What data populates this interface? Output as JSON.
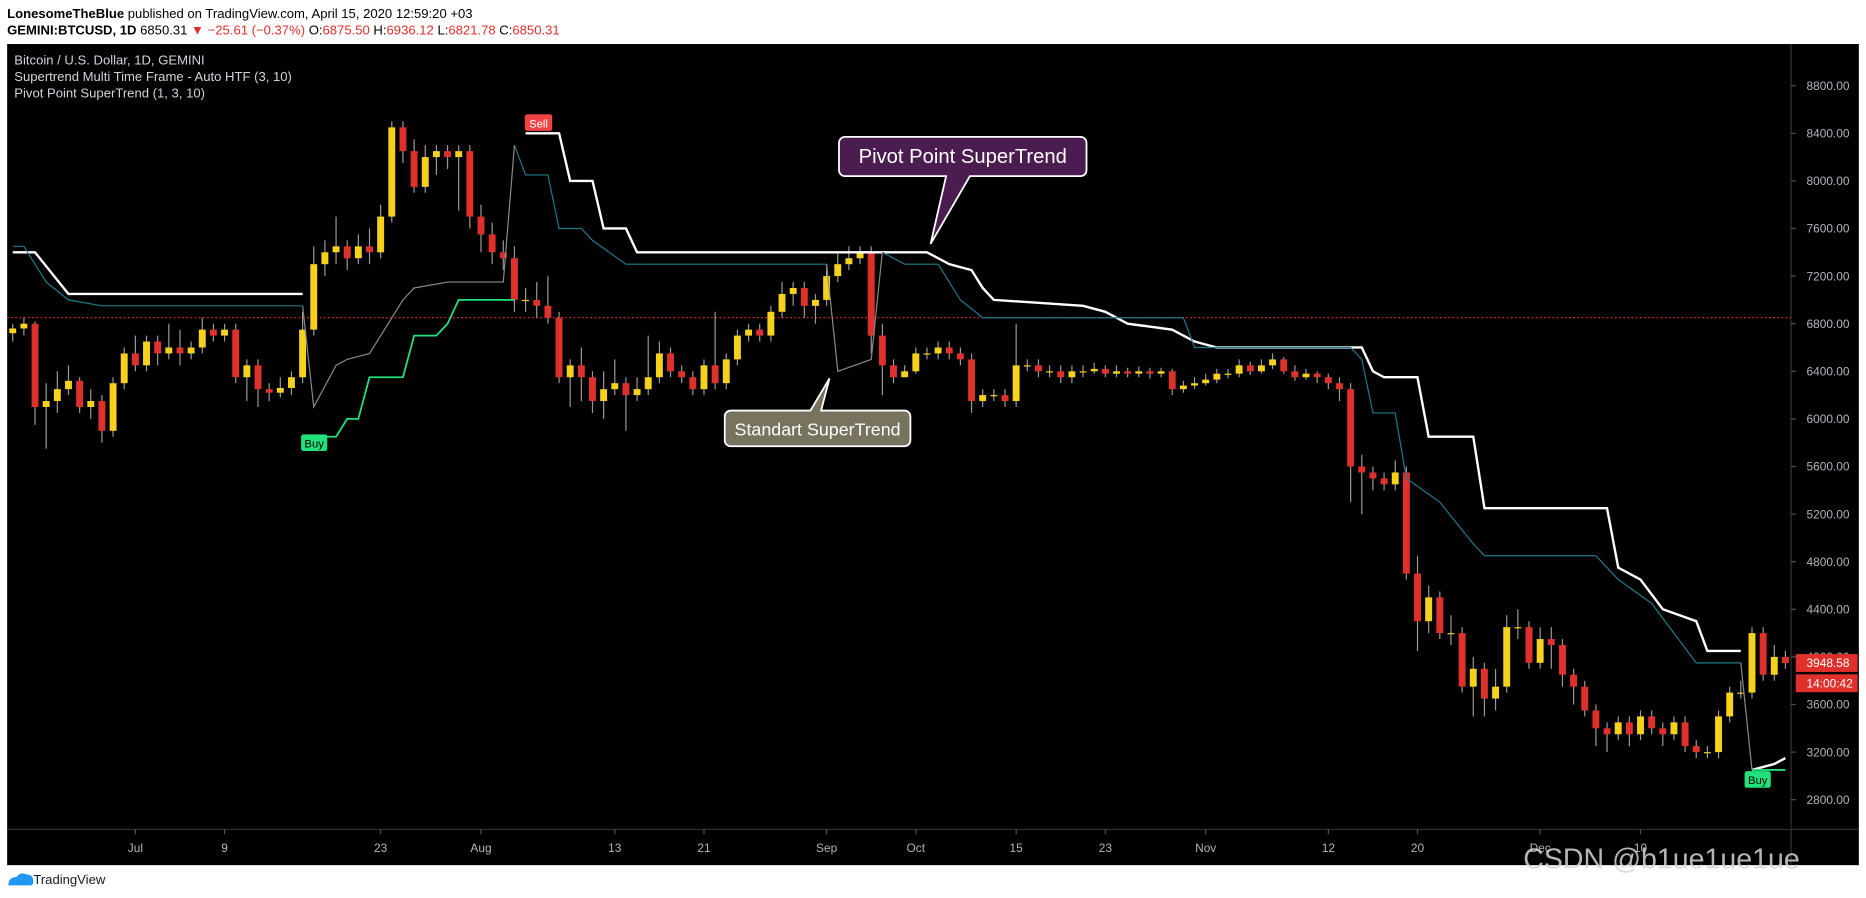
{
  "header": {
    "author": "LonesomeTheBlue",
    "published": "published on TradingView.com, April 15, 2020 12:59:20 +03",
    "symbol": "GEMINI:BTCUSD, 1D",
    "last": "6850.31",
    "change": "▼ −25.61 (−0.37%)",
    "ohlc": [
      {
        "key": "O:",
        "value": "6875.50"
      },
      {
        "key": "H:",
        "value": "6936.12"
      },
      {
        "key": "L:",
        "value": "6821.78"
      },
      {
        "key": "C:",
        "value": "6850.31"
      }
    ]
  },
  "chart_data": {
    "type": "candlestick",
    "title": "Bitcoin / U.S. Dollar, 1D, GEMINI",
    "indicators": [
      "Supertrend Multi Time Frame - Auto HTF (3, 10)",
      "Pivot Point SuperTrend (1, 3, 10)"
    ],
    "up_color": "#f7d21c",
    "down_color": "#e0302c",
    "wick_color": "#9a9a9a",
    "open": [
      6720,
      6760,
      6800,
      6100,
      6150,
      6250,
      6320,
      6100,
      6150,
      5900,
      6300,
      6550,
      6450,
      6650,
      6550,
      6600,
      6550,
      6600,
      6750,
      6700,
      6750,
      6350,
      6450,
      6250,
      6220,
      6260,
      6350,
      6750,
      7300,
      7400,
      7450,
      7350,
      7450,
      7400,
      7700,
      8450,
      8250,
      7950,
      8200,
      8250,
      8200,
      8250,
      7700,
      7550,
      7400,
      7350,
      7000,
      7000,
      6950,
      6850,
      6350,
      6450,
      6350,
      6150,
      6250,
      6300,
      6200,
      6250,
      6350,
      6550,
      6400,
      6350,
      6250,
      6450,
      6300,
      6500,
      6700,
      6750,
      6700,
      6900,
      7050,
      7100,
      6950,
      7000,
      7200,
      7300,
      7350,
      7400,
      6700,
      6450,
      6350,
      6400,
      6550,
      6550,
      6600,
      6550,
      6500,
      6150,
      6200,
      6200,
      6150,
      6450,
      6450,
      6400,
      6400,
      6350,
      6400,
      6400,
      6420,
      6380,
      6400,
      6380,
      6400,
      6380,
      6400,
      6250,
      6280,
      6300,
      6330,
      6380,
      6380,
      6450,
      6400,
      6450,
      6500,
      6400,
      6350,
      6380,
      6350,
      6300,
      6250,
      5600,
      5550,
      5500,
      5450,
      5550,
      4700,
      4300,
      4500,
      4200,
      4200,
      3750,
      3900,
      3650,
      3750,
      4250,
      4250,
      3950,
      4150,
      4100,
      3850,
      3750,
      3550,
      3400,
      3350,
      3450,
      3350,
      3500,
      3400,
      3350,
      3450,
      3250,
      3200,
      3200,
      3500,
      3700,
      3700,
      4200,
      3850,
      4000
    ],
    "high": [
      6800,
      6850,
      6820,
      6300,
      6400,
      6450,
      6350,
      6250,
      6200,
      6350,
      6600,
      6700,
      6700,
      6700,
      6800,
      6750,
      6650,
      6850,
      6800,
      6800,
      6800,
      6500,
      6500,
      6300,
      6350,
      6400,
      6900,
      7450,
      7500,
      7700,
      7500,
      7550,
      7600,
      7800,
      8500,
      8500,
      8350,
      8300,
      8300,
      8300,
      8300,
      8300,
      7800,
      7650,
      7500,
      7450,
      7100,
      7150,
      7200,
      6900,
      6500,
      6600,
      6400,
      6400,
      6500,
      6350,
      6350,
      6700,
      6650,
      6600,
      6450,
      6400,
      6500,
      6900,
      6550,
      6750,
      6800,
      6800,
      6950,
      7150,
      7150,
      7150,
      7050,
      7300,
      7400,
      7450,
      7450,
      7450,
      6800,
      6500,
      6450,
      6600,
      6600,
      6650,
      6650,
      6600,
      6550,
      6250,
      6250,
      6250,
      6800,
      6500,
      6500,
      6450,
      6450,
      6450,
      6450,
      6470,
      6450,
      6450,
      6430,
      6440,
      6430,
      6430,
      6420,
      6320,
      6350,
      6380,
      6420,
      6420,
      6500,
      6480,
      6500,
      6550,
      6520,
      6450,
      6420,
      6400,
      6380,
      6350,
      6300,
      5700,
      5600,
      5550,
      5650,
      5600,
      4850,
      4600,
      4550,
      4350,
      4250,
      4000,
      3950,
      3900,
      4350,
      4400,
      4300,
      4250,
      4250,
      4150,
      3900,
      3800,
      3600,
      3450,
      3500,
      3500,
      3550,
      3550,
      3450,
      3500,
      3500,
      3300,
      3250,
      3550,
      3750,
      3800,
      4250,
      4250,
      4100,
      4050
    ],
    "low": [
      6650,
      6700,
      5950,
      5750,
      6050,
      6200,
      6050,
      6000,
      5800,
      5850,
      6250,
      6400,
      6400,
      6450,
      6500,
      6450,
      6500,
      6550,
      6650,
      6650,
      6300,
      6150,
      6100,
      6150,
      6180,
      6200,
      6300,
      6700,
      7200,
      7300,
      7250,
      7300,
      7300,
      7350,
      7650,
      8150,
      7900,
      7900,
      8050,
      8100,
      7750,
      7600,
      7400,
      7300,
      7250,
      6900,
      6900,
      6850,
      6800,
      6300,
      6100,
      6150,
      6050,
      6000,
      6200,
      5900,
      6150,
      6200,
      6300,
      6350,
      6300,
      6200,
      6200,
      6250,
      6250,
      6450,
      6650,
      6650,
      6650,
      6850,
      6950,
      6850,
      6800,
      6950,
      7150,
      7250,
      7300,
      6550,
      6200,
      6300,
      6350,
      6380,
      6500,
      6500,
      6500,
      6450,
      6050,
      6100,
      6150,
      6100,
      6100,
      6400,
      6350,
      6350,
      6300,
      6300,
      6350,
      6380,
      6350,
      6350,
      6350,
      6350,
      6340,
      6350,
      6200,
      6220,
      6250,
      6280,
      6300,
      6340,
      6350,
      6370,
      6380,
      6420,
      6380,
      6320,
      6330,
      6300,
      6250,
      6150,
      5300,
      5200,
      5400,
      5400,
      5400,
      4650,
      4050,
      4200,
      4150,
      4100,
      3700,
      3500,
      3500,
      3550,
      3700,
      4150,
      3900,
      3900,
      3900,
      3750,
      3600,
      3500,
      3250,
      3200,
      3300,
      3250,
      3300,
      3350,
      3250,
      3300,
      3200,
      3150,
      3150,
      3150,
      3450,
      3650,
      3650,
      3800,
      3800,
      3900
    ],
    "close": [
      6760,
      6800,
      6100,
      6150,
      6250,
      6320,
      6100,
      6150,
      5900,
      6300,
      6550,
      6450,
      6650,
      6550,
      6600,
      6550,
      6600,
      6750,
      6700,
      6750,
      6350,
      6450,
      6250,
      6220,
      6260,
      6350,
      6750,
      7300,
      7400,
      7450,
      7350,
      7450,
      7400,
      7700,
      8450,
      8250,
      7950,
      8200,
      8250,
      8200,
      8250,
      7700,
      7550,
      7400,
      7350,
      7000,
      7000,
      6950,
      6850,
      6350,
      6450,
      6350,
      6150,
      6250,
      6300,
      6200,
      6250,
      6350,
      6550,
      6400,
      6350,
      6250,
      6450,
      6300,
      6500,
      6700,
      6750,
      6700,
      6900,
      7050,
      7100,
      6950,
      7000,
      7200,
      7300,
      7350,
      7400,
      6700,
      6450,
      6350,
      6400,
      6550,
      6550,
      6600,
      6550,
      6500,
      6150,
      6200,
      6200,
      6150,
      6450,
      6450,
      6400,
      6400,
      6350,
      6400,
      6400,
      6420,
      6380,
      6400,
      6380,
      6400,
      6380,
      6400,
      6250,
      6280,
      6300,
      6330,
      6380,
      6380,
      6450,
      6400,
      6450,
      6500,
      6400,
      6350,
      6380,
      6350,
      6300,
      6250,
      5600,
      5550,
      5500,
      5450,
      5550,
      4700,
      4300,
      4500,
      4200,
      4200,
      3750,
      3900,
      3650,
      3750,
      4250,
      4250,
      3950,
      4150,
      4100,
      3850,
      3750,
      3550,
      3400,
      3350,
      3450,
      3350,
      3500,
      3400,
      3350,
      3450,
      3250,
      3200,
      3200,
      3500,
      3700,
      3700,
      4200,
      3850,
      4000,
      3948.58
    ],
    "series": [
      {
        "color": "#ffffff",
        "width": 2,
        "x": [
          0,
          2,
          5,
          26,
          null,
          46,
          49,
          50,
          52,
          53,
          55,
          56,
          82,
          84,
          86,
          87,
          88,
          96,
          98,
          100,
          104,
          106,
          108,
          121,
          122,
          123,
          126,
          127,
          131,
          132,
          143,
          144,
          146,
          148,
          151,
          152,
          155,
          null,
          156,
          158,
          159
        ],
        "values": [
          7400,
          7400,
          7050,
          7050,
          null,
          8400,
          8400,
          8000,
          8000,
          7600,
          7600,
          7400,
          7400,
          7300,
          7250,
          7100,
          7000,
          6950,
          6900,
          6800,
          6750,
          6650,
          6600,
          6600,
          6400,
          6350,
          6350,
          5850,
          5850,
          5250,
          5250,
          4750,
          4650,
          4400,
          4300,
          4050,
          4050,
          null,
          3050,
          3100,
          3150
        ]
      },
      {
        "color": "#1f7a8c",
        "width": 1,
        "x": [
          0,
          1,
          3,
          5,
          8,
          26,
          null,
          45,
          46,
          48,
          49,
          51,
          52,
          55,
          73,
          null,
          78,
          80,
          83,
          85,
          87,
          105,
          106,
          120,
          121,
          122,
          124,
          125,
          128,
          131,
          132,
          142,
          144,
          147,
          149,
          151,
          155
        ],
        "values": [
          7450,
          7450,
          7150,
          7000,
          6950,
          6950,
          null,
          8300,
          8050,
          8050,
          7600,
          7600,
          7500,
          7300,
          7300,
          null,
          7400,
          7300,
          7300,
          7000,
          6850,
          6850,
          6600,
          6600,
          6500,
          6050,
          6050,
          5500,
          5300,
          4950,
          4850,
          4850,
          4650,
          4450,
          4200,
          3950,
          3950
        ]
      },
      {
        "color": "#8a8a8a",
        "width": 1,
        "x": [
          26,
          27,
          29,
          30,
          32,
          33,
          35,
          36,
          39,
          44,
          45,
          null,
          73,
          74,
          77,
          78,
          null,
          155,
          156
        ],
        "values": [
          6950,
          6100,
          6450,
          6500,
          6550,
          6700,
          7000,
          7100,
          7150,
          7150,
          8300,
          null,
          7300,
          6400,
          6500,
          7400,
          null,
          3950,
          3050
        ]
      },
      {
        "color": "#22e07a",
        "width": 1.5,
        "x": [
          27,
          29,
          30,
          31,
          32,
          35,
          36,
          38,
          39,
          40,
          45,
          null,
          156,
          159
        ],
        "values": [
          5850,
          5850,
          6000,
          6000,
          6350,
          6350,
          6700,
          6700,
          6800,
          7000,
          7000,
          null,
          3050,
          3050
        ]
      }
    ],
    "annotations": [
      "Buy",
      "Sell",
      "Buy"
    ],
    "callouts": [
      "Pivot Point SuperTrend",
      "Standart SuperTrend"
    ],
    "last_price_line": 6850.31,
    "price_label": {
      "value": 3948.58,
      "label": "3948.58"
    },
    "countdown": "14:00:42",
    "xlim": [
      -0.5,
      159.5
    ],
    "xticks": [
      {
        "value": 11,
        "label": "Jul"
      },
      {
        "value": 19,
        "label": "9"
      },
      {
        "value": 33,
        "label": "23"
      },
      {
        "value": 42,
        "label": "Aug"
      },
      {
        "value": 54,
        "label": "13"
      },
      {
        "value": 62,
        "label": "21"
      },
      {
        "value": 73,
        "label": "Sep"
      },
      {
        "value": 81,
        "label": "Oct"
      },
      {
        "value": 90,
        "label": "15"
      },
      {
        "value": 98,
        "label": "23"
      },
      {
        "value": 107,
        "label": "Nov"
      },
      {
        "value": 118,
        "label": "12"
      },
      {
        "value": 126,
        "label": "20"
      },
      {
        "value": 137,
        "label": "Dec"
      },
      {
        "value": 146,
        "label": "10"
      }
    ],
    "ylim": [
      2550,
      9150
    ],
    "yticks": [
      {
        "value": 2800,
        "label": "2800.00"
      },
      {
        "value": 3200,
        "label": "3200.00"
      },
      {
        "value": 3600,
        "label": "3600.00"
      },
      {
        "value": 4000,
        "label": "4000.00"
      },
      {
        "value": 4400,
        "label": "4400.00"
      },
      {
        "value": 4800,
        "label": "4800.00"
      },
      {
        "value": 5200,
        "label": "5200.00"
      },
      {
        "value": 5600,
        "label": "5600.00"
      },
      {
        "value": 6000,
        "label": "6000.00"
      },
      {
        "value": 6400,
        "label": "6400.00"
      },
      {
        "value": 6800,
        "label": "6800.00"
      },
      {
        "value": 7200,
        "label": "7200.00"
      },
      {
        "value": 7600,
        "label": "7600.00"
      },
      {
        "value": 8000,
        "label": "8000.00"
      },
      {
        "value": 8400,
        "label": "8400.00"
      },
      {
        "value": 8800,
        "label": "8800.00"
      }
    ]
  },
  "footer": {
    "brand": "TradingView",
    "watermark": "CSDN @b1ue1ue1ue"
  }
}
